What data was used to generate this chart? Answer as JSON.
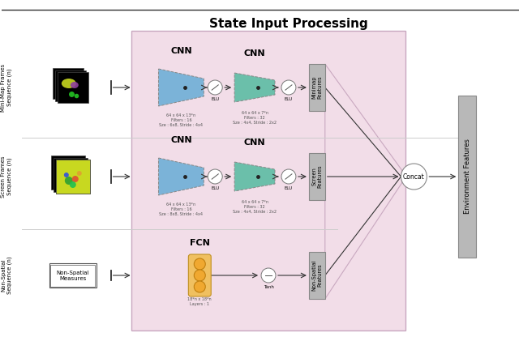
{
  "title": "State Input Processing",
  "background_color": "#ffffff",
  "pink_box_color": "#f2dde8",
  "pink_box_edge": "#c9a8c0",
  "cnn_blue_color": "#7bb3d8",
  "cnn_teal_color": "#6bbfaa",
  "fcn_orange_color": "#f0a830",
  "gray_box_color": "#b8b8b8",
  "env_features_color": "#b8b8b8",
  "row1_label": "Mini-Map Frames\nSequence (n)",
  "row2_label": "Screen Frames\nSequence (n)",
  "row3_label": "Non-Spatial\nSequence (n)",
  "minimap_features_label": "Minimap\nFeatures",
  "screen_features_label": "Screen\nFeatures",
  "nonspatial_features_label": "Non-Spatial\nFeatures",
  "env_features_label": "Environment Features",
  "cnn1_row1_text": "64 x 64 x 13*n\nFilters : 16\nSze : 6x8, Stride : 4x4",
  "cnn2_row1_text": "64 x 64 x 7*n\nFilters : 32\nSze : 4x4, Stride : 2x2",
  "cnn1_row2_text": "64 x 64 x 13*n\nFilters : 16\nSze : 8x8, Stride : 4x4",
  "cnn2_row2_text": "64 x 64 x 7*n\nFilters : 32\nSze : 4x4, Stride : 2x2",
  "fcn_text": "18*n x 18*n\nLayers : 1",
  "elu_label": "ELU",
  "tanh_label": "Tanh",
  "concat_label": "Concat",
  "nonspatial_box_text": "Non-Spatial\nMeasures",
  "cnn_label": "CNN",
  "fcn_label": "FCN"
}
